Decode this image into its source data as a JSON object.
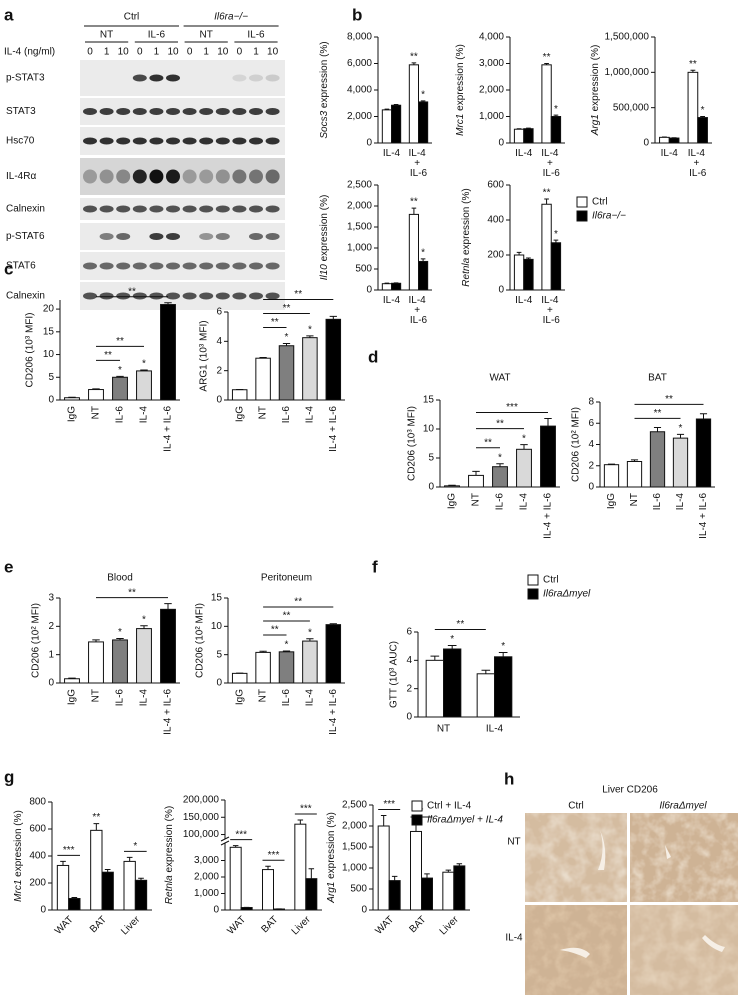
{
  "panel_labels": [
    "a",
    "b",
    "c",
    "d",
    "e",
    "f",
    "g",
    "h"
  ],
  "blot": {
    "groups": [
      "Ctrl",
      "Il6ra−/−"
    ],
    "treatments": [
      "NT",
      "IL-6",
      "NT",
      "IL-6"
    ],
    "dose_label": "IL-4 (ng/ml)",
    "doses": [
      0,
      1,
      10,
      0,
      1,
      10,
      0,
      1,
      10,
      0,
      1,
      10
    ],
    "rows": [
      "p-STAT3",
      "STAT3",
      "Hsc70",
      "IL-4Rα",
      "Calnexin",
      "p-STAT6",
      "STAT6",
      "Calnexin"
    ]
  },
  "chart_data": [
    {
      "type": "bar",
      "ylabel": "Socs3 expression (%)",
      "categories": [
        "IL-4",
        "IL-4 + IL-6"
      ],
      "series": [
        {
          "color": "#ffffff",
          "values": [
            2500,
            5900
          ],
          "errors": [
            60,
            150
          ],
          "marks": [
            null,
            "**"
          ]
        },
        {
          "color": "#000000",
          "values": [
            2850,
            3100
          ],
          "errors": [
            60,
            80
          ],
          "marks": [
            null,
            "*"
          ]
        }
      ],
      "ylim": [
        0,
        8000
      ],
      "yticks": [
        0,
        {
          "value": 2000,
          "label": "2,000"
        },
        {
          "value": 4000,
          "label": "4,000"
        },
        {
          "value": 6000,
          "label": "6,000"
        },
        {
          "value": 8000,
          "label": "8,000"
        }
      ]
    },
    {
      "type": "bar",
      "ylabel": "Mrc1 expression (%)",
      "categories": [
        "IL-4",
        "IL-4 + IL-6"
      ],
      "series": [
        {
          "color": "#ffffff",
          "values": [
            520,
            2950
          ],
          "errors": [
            20,
            50
          ],
          "marks": [
            null,
            "**"
          ]
        },
        {
          "color": "#000000",
          "values": [
            540,
            1000
          ],
          "errors": [
            20,
            50
          ],
          "marks": [
            null,
            "*"
          ]
        }
      ],
      "ylim": [
        0,
        4000
      ],
      "yticks": [
        0,
        {
          "value": 1000,
          "label": "1,000"
        },
        {
          "value": 2000,
          "label": "2,000"
        },
        {
          "value": 3000,
          "label": "3,000"
        },
        {
          "value": 4000,
          "label": "4,000"
        }
      ]
    },
    {
      "type": "bar",
      "ylabel": "Arg1 expression (%)",
      "categories": [
        "IL-4",
        "IL-4 + IL-6"
      ],
      "series": [
        {
          "color": "#ffffff",
          "values": [
            80000,
            1000000
          ],
          "errors": [
            5000,
            30000
          ],
          "marks": [
            null,
            "**"
          ]
        },
        {
          "color": "#000000",
          "values": [
            70000,
            360000
          ],
          "errors": [
            5000,
            15000
          ],
          "marks": [
            null,
            "*"
          ]
        }
      ],
      "ylim": [
        0,
        1500000
      ],
      "yticks": [
        0,
        {
          "value": 500000,
          "label": "500,000"
        },
        {
          "value": 1000000,
          "label": "1,000,000"
        },
        {
          "value": 1500000,
          "label": "1,500,000"
        }
      ]
    },
    {
      "type": "bar",
      "ylabel": "Il10 expression (%)",
      "categories": [
        "IL-4",
        "IL-4 + IL-6"
      ],
      "series": [
        {
          "color": "#ffffff",
          "values": [
            150,
            1800
          ],
          "errors": [
            15,
            150
          ],
          "marks": [
            null,
            "**"
          ]
        },
        {
          "color": "#000000",
          "values": [
            160,
            680
          ],
          "errors": [
            10,
            60
          ],
          "marks": [
            null,
            "*"
          ]
        }
      ],
      "ylim": [
        0,
        2500
      ],
      "yticks": [
        0,
        500,
        {
          "value": 1000,
          "label": "1,000"
        },
        {
          "value": 1500,
          "label": "1,500"
        },
        {
          "value": 2000,
          "label": "2,000"
        },
        {
          "value": 2500,
          "label": "2,500"
        }
      ]
    },
    {
      "type": "bar",
      "ylabel": "Retnla expression (%)",
      "categories": [
        "IL-4",
        "IL-4 + IL-6"
      ],
      "series": [
        {
          "name": "Ctrl",
          "color": "#ffffff",
          "values": [
            200,
            490
          ],
          "errors": [
            15,
            30
          ],
          "marks": [
            null,
            "**"
          ]
        },
        {
          "name": "Il6ra−/−",
          "color": "#000000",
          "values": [
            175,
            270
          ],
          "errors": [
            8,
            15
          ],
          "marks": [
            null,
            "*"
          ]
        }
      ],
      "ylim": [
        0,
        600
      ],
      "yticks": [
        0,
        200,
        400,
        600
      ],
      "legend": "right"
    },
    {
      "type": "bar",
      "ylabel": "CD206 (10³ MFI)",
      "categories": [
        "IgG",
        "NT",
        "IL-6",
        "IL-4",
        "IL-4 + IL-6"
      ],
      "values": [
        0.5,
        2.3,
        5.0,
        6.4,
        21.0
      ],
      "errors": [
        0.1,
        0.15,
        0.2,
        0.2,
        0.4
      ],
      "colors": [
        "#ffffff",
        "#ffffff",
        "#7f7f7f",
        "#d9d9d9",
        "#000000"
      ],
      "marks": [
        null,
        null,
        "*",
        "*",
        null
      ],
      "annotations": [
        {
          "text": "**",
          "between": [
            "NT",
            "IL-6"
          ]
        },
        {
          "text": "**",
          "between": [
            "NT",
            "IL-4"
          ]
        },
        {
          "text": "**",
          "between": [
            "NT",
            "IL-4 + IL-6"
          ]
        }
      ],
      "ylim": [
        0,
        22
      ],
      "yticks": [
        0,
        5,
        10,
        15,
        20
      ]
    },
    {
      "type": "bar",
      "ylabel": "ARG1 (10³ MFI)",
      "categories": [
        "IgG",
        "NT",
        "IL-6",
        "IL-4",
        "IL-4 + IL-6"
      ],
      "values": [
        0.7,
        2.85,
        3.7,
        4.25,
        5.5
      ],
      "errors": [
        0.02,
        0.05,
        0.15,
        0.12,
        0.2
      ],
      "colors": [
        "#ffffff",
        "#ffffff",
        "#7f7f7f",
        "#d9d9d9",
        "#000000"
      ],
      "marks": [
        null,
        null,
        "*",
        "*",
        null
      ],
      "annotations": [
        {
          "text": "**",
          "between": [
            "NT",
            "IL-6"
          ]
        },
        {
          "text": "**",
          "between": [
            "NT",
            "IL-4"
          ]
        },
        {
          "text": "**",
          "between": [
            "NT",
            "IL-4 + IL-6"
          ]
        }
      ],
      "ylim": [
        0,
        6
      ],
      "yticks": [
        0,
        2,
        4,
        6
      ]
    },
    {
      "type": "bar",
      "title": "WAT",
      "ylabel": "CD206 (10³ MFI)",
      "categories": [
        "IgG",
        "NT",
        "IL-6",
        "IL-4",
        "IL-4 + IL-6"
      ],
      "values": [
        0.2,
        2.0,
        3.5,
        6.5,
        10.5
      ],
      "errors": [
        0.1,
        0.7,
        0.5,
        0.8,
        1.3
      ],
      "colors": [
        "#ffffff",
        "#ffffff",
        "#7f7f7f",
        "#d9d9d9",
        "#000000"
      ],
      "marks": [
        null,
        null,
        "*",
        "*",
        null
      ],
      "annotations": [
        {
          "text": "**",
          "between": [
            "NT",
            "IL-6"
          ]
        },
        {
          "text": "**",
          "between": [
            "NT",
            "IL-4"
          ]
        },
        {
          "text": "***",
          "between": [
            "NT",
            "IL-4 + IL-6"
          ]
        }
      ],
      "ylim": [
        0,
        15
      ],
      "yticks": [
        0,
        5,
        10,
        15
      ]
    },
    {
      "type": "bar",
      "title": "BAT",
      "ylabel": "CD206 (10² MFI)",
      "categories": [
        "IgG",
        "NT",
        "IL-6",
        "IL-4",
        "IL-4 + IL-6"
      ],
      "values": [
        2.1,
        2.4,
        5.2,
        4.6,
        6.4
      ],
      "errors": [
        0.05,
        0.15,
        0.4,
        0.35,
        0.5
      ],
      "colors": [
        "#ffffff",
        "#ffffff",
        "#7f7f7f",
        "#d9d9d9",
        "#000000"
      ],
      "marks": [
        null,
        null,
        null,
        "*",
        null
      ],
      "annotations": [
        {
          "text": "**",
          "between": [
            "NT",
            "IL-4"
          ]
        },
        {
          "text": "**",
          "between": [
            "NT",
            "IL-4 + IL-6"
          ]
        }
      ],
      "ylim": [
        0,
        8
      ],
      "yticks": [
        0,
        2,
        4,
        6,
        8
      ]
    },
    {
      "type": "bar",
      "title": "Blood",
      "ylabel": "CD206 (10² MFI)",
      "categories": [
        "IgG",
        "NT",
        "IL-6",
        "IL-4",
        "IL-4 + IL-6"
      ],
      "values": [
        0.15,
        1.45,
        1.52,
        1.92,
        2.6
      ],
      "errors": [
        0.02,
        0.07,
        0.05,
        0.1,
        0.2
      ],
      "colors": [
        "#ffffff",
        "#ffffff",
        "#7f7f7f",
        "#d9d9d9",
        "#000000"
      ],
      "marks": [
        null,
        null,
        "*",
        "*",
        null
      ],
      "annotations": [
        {
          "text": "**",
          "between": [
            "NT",
            "IL-4 + IL-6"
          ]
        }
      ],
      "ylim": [
        0,
        3
      ],
      "yticks": [
        0,
        1,
        2,
        3
      ]
    },
    {
      "type": "bar",
      "title": "Peritoneum",
      "ylabel": "CD206 (10² MFI)",
      "categories": [
        "IgG",
        "NT",
        "IL-6",
        "IL-4",
        "IL-4 + IL-6"
      ],
      "values": [
        1.7,
        5.4,
        5.5,
        7.4,
        10.3
      ],
      "errors": [
        0.05,
        0.2,
        0.15,
        0.4,
        0.15
      ],
      "colors": [
        "#ffffff",
        "#ffffff",
        "#7f7f7f",
        "#d9d9d9",
        "#000000"
      ],
      "marks": [
        null,
        null,
        "*",
        "*",
        null
      ],
      "annotations": [
        {
          "text": "**",
          "between": [
            "NT",
            "IL-6"
          ]
        },
        {
          "text": "**",
          "between": [
            "NT",
            "IL-4"
          ]
        },
        {
          "text": "**",
          "between": [
            "NT",
            "IL-4 + IL-6"
          ]
        }
      ],
      "ylim": [
        0,
        15
      ],
      "yticks": [
        0,
        5,
        10,
        15
      ]
    },
    {
      "type": "bar",
      "ylabel": "GTT (10³ AUC)",
      "categories": [
        "NT",
        "IL-4"
      ],
      "series": [
        {
          "name": "Ctrl",
          "color": "#ffffff",
          "values": [
            4.0,
            3.05
          ],
          "errors": [
            0.3,
            0.25
          ]
        },
        {
          "name": "Il6raΔmyel",
          "color": "#000000",
          "values": [
            4.8,
            4.25
          ],
          "errors": [
            0.25,
            0.3
          ],
          "marks": [
            "*",
            "*"
          ]
        }
      ],
      "annotations": [
        {
          "text": "**",
          "between": [
            "NT",
            "IL-4"
          ]
        }
      ],
      "ylim": [
        0,
        6
      ],
      "yticks": [
        0,
        2,
        4,
        6
      ],
      "legend": "right"
    },
    {
      "type": "bar",
      "ylabel": "Mrc1 expression (%)",
      "categories": [
        "WAT",
        "BAT",
        "Liver"
      ],
      "series": [
        {
          "color": "#ffffff",
          "values": [
            330,
            590,
            360
          ],
          "errors": [
            30,
            50,
            30
          ],
          "marks": [
            null,
            "**",
            null
          ]
        },
        {
          "color": "#000000",
          "values": [
            85,
            280,
            220
          ],
          "errors": [
            8,
            20,
            15
          ]
        }
      ],
      "annotations": [
        {
          "text": "***",
          "category": "WAT"
        },
        {
          "text": "*",
          "category": "Liver"
        }
      ],
      "ylim": [
        0,
        800
      ],
      "yticks": [
        0,
        200,
        400,
        600,
        800
      ]
    },
    {
      "type": "bar",
      "ylabel": "Retnla expression (%)",
      "categories": [
        "WAT",
        "BAT",
        "Liver"
      ],
      "series": [
        {
          "color": "#ffffff",
          "values": [
            3800,
            2450,
            130000
          ],
          "errors": [
            100,
            200,
            12000
          ]
        },
        {
          "color": "#000000",
          "values": [
            150,
            60,
            1900
          ],
          "errors": [
            10,
            10,
            600
          ]
        }
      ],
      "annotations": [
        {
          "text": "***",
          "category": "WAT"
        },
        {
          "text": "***",
          "category": "BAT"
        },
        {
          "text": "***",
          "category": "Liver"
        }
      ],
      "ylim": [
        0,
        200000
      ],
      "ybreak": [
        4000,
        90000
      ],
      "yticks": [
        0,
        {
          "value": 1000,
          "label": "1,000"
        },
        {
          "value": 2000,
          "label": "2,000"
        },
        {
          "value": 3000,
          "label": "3,000"
        },
        {
          "value": 100000,
          "label": "100,000"
        },
        {
          "value": 150000,
          "label": "150,000"
        },
        {
          "value": 200000,
          "label": "200,000"
        }
      ]
    },
    {
      "type": "bar",
      "ylabel": "Arg1 expression (%)",
      "categories": [
        "WAT",
        "BAT",
        "Liver"
      ],
      "series": [
        {
          "name": "Ctrl + IL-4",
          "color": "#ffffff",
          "values": [
            2000,
            1870,
            900
          ],
          "errors": [
            250,
            200,
            50
          ]
        },
        {
          "name": "Il6raΔmyel + IL-4",
          "color": "#000000",
          "values": [
            700,
            760,
            1050
          ],
          "errors": [
            100,
            100,
            50
          ]
        }
      ],
      "annotations": [
        {
          "text": "***",
          "category": "WAT"
        },
        {
          "text": "*",
          "category": "BAT"
        }
      ],
      "ylim": [
        0,
        2500
      ],
      "yticks": [
        0,
        500,
        {
          "value": 1000,
          "label": "1,000"
        },
        {
          "value": 1500,
          "label": "1,500"
        },
        {
          "value": 2000,
          "label": "2,000"
        },
        {
          "value": 2500,
          "label": "2,500"
        }
      ],
      "legend": "right"
    }
  ],
  "histology": {
    "title": "Liver CD206",
    "columns": [
      "Ctrl",
      "Il6raΔmyel"
    ],
    "rows": [
      "NT",
      "IL-4"
    ]
  }
}
